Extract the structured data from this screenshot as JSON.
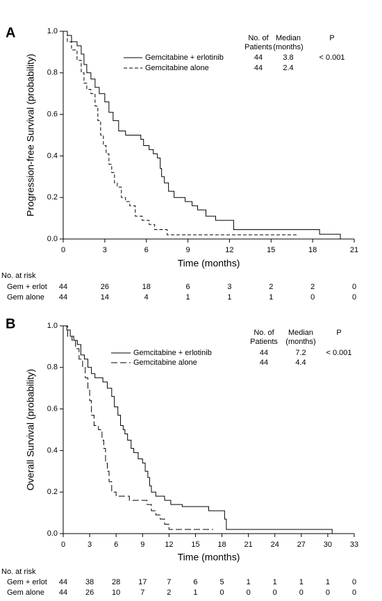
{
  "chart_data": [
    {
      "type": "step",
      "panel_label": "A",
      "x_label": "Time (months)",
      "y_label": "Progression-free Survival (probability)",
      "xlim": [
        0,
        21
      ],
      "xticks": [
        0,
        3,
        6,
        9,
        12,
        15,
        18,
        21
      ],
      "ylim": [
        0,
        1
      ],
      "yticks": [
        {
          "value": 0,
          "label": "0.0"
        },
        0.2,
        0.4,
        0.6,
        0.8,
        {
          "value": 1,
          "label": "1.0"
        }
      ],
      "legend_headers": [
        [
          "No. of",
          "Patients"
        ],
        [
          "Median",
          "(months)"
        ],
        [
          "P"
        ]
      ],
      "p_value": "< 0.001",
      "series": [
        {
          "name": "Gemcitabine + erlotinib",
          "color": "#000000",
          "line_style": "solid",
          "n": 44,
          "median": 3.8,
          "x": [
            0,
            0.3,
            0.6,
            1.0,
            1.3,
            1.5,
            1.7,
            2.0,
            2.3,
            2.6,
            3.0,
            3.3,
            3.6,
            4.0,
            4.5,
            5.6,
            5.8,
            6.2,
            6.5,
            6.8,
            7.0,
            7.1,
            7.3,
            7.6,
            8.0,
            8.8,
            9.3,
            9.7,
            10.3,
            11.0,
            12.3,
            18.5,
            20.0
          ],
          "values": [
            1.0,
            0.98,
            0.95,
            0.93,
            0.89,
            0.84,
            0.8,
            0.77,
            0.73,
            0.7,
            0.66,
            0.61,
            0.57,
            0.52,
            0.5,
            0.48,
            0.45,
            0.43,
            0.41,
            0.39,
            0.34,
            0.3,
            0.27,
            0.23,
            0.2,
            0.18,
            0.16,
            0.14,
            0.11,
            0.09,
            0.045,
            0.023,
            0.0
          ]
        },
        {
          "name": "Gemcitabine alone",
          "color": "#000000",
          "line_style": "dashed",
          "n": 44,
          "median": 2.4,
          "x": [
            0,
            0.3,
            0.6,
            1.0,
            1.3,
            1.5,
            1.7,
            2.0,
            2.3,
            2.5,
            2.7,
            2.9,
            3.1,
            3.3,
            3.5,
            3.7,
            3.9,
            4.2,
            4.5,
            4.8,
            5.2,
            5.7,
            6.2,
            6.6,
            7.5,
            17.0
          ],
          "values": [
            1.0,
            0.95,
            0.91,
            0.86,
            0.8,
            0.75,
            0.72,
            0.7,
            0.64,
            0.57,
            0.5,
            0.45,
            0.41,
            0.36,
            0.32,
            0.27,
            0.25,
            0.2,
            0.18,
            0.16,
            0.11,
            0.09,
            0.07,
            0.045,
            0.02,
            0.02
          ]
        }
      ],
      "risk_table": {
        "title": "No. at risk",
        "rows": [
          {
            "label": "Gem + erlot",
            "counts": [
              44,
              26,
              18,
              6,
              3,
              2,
              2,
              0
            ]
          },
          {
            "label": "Gem alone",
            "counts": [
              44,
              14,
              4,
              1,
              1,
              1,
              0,
              0
            ]
          }
        ]
      }
    },
    {
      "type": "step",
      "panel_label": "B",
      "x_label": "Time (months)",
      "y_label": "Overall Survival (probability)",
      "xlim": [
        0,
        33
      ],
      "xticks": [
        0,
        3,
        6,
        9,
        12,
        15,
        18,
        21,
        24,
        27,
        30,
        33
      ],
      "ylim": [
        0,
        1
      ],
      "yticks": [
        {
          "value": 0,
          "label": "0.0"
        },
        0.2,
        0.4,
        0.6,
        0.8,
        {
          "value": 1,
          "label": "1.0"
        }
      ],
      "legend_headers": [
        [
          "No. of",
          "Patients"
        ],
        [
          "Median",
          "(months)"
        ],
        [
          "P"
        ]
      ],
      "p_value": "< 0.001",
      "series": [
        {
          "name": "Gemcitabine + erlotinib",
          "color": "#000000",
          "line_style": "solid",
          "n": 44,
          "median": 7.2,
          "x": [
            0,
            0.4,
            0.8,
            1.2,
            1.6,
            2.0,
            2.4,
            2.8,
            3.2,
            3.6,
            4.5,
            5.0,
            5.5,
            5.8,
            6.2,
            6.5,
            6.8,
            7.0,
            7.3,
            7.7,
            8.0,
            8.5,
            9.0,
            9.3,
            9.6,
            9.8,
            10.0,
            10.5,
            11.5,
            12.2,
            13.5,
            16.5,
            18.3,
            18.5,
            30.5
          ],
          "values": [
            1.0,
            0.98,
            0.95,
            0.93,
            0.91,
            0.86,
            0.84,
            0.8,
            0.77,
            0.75,
            0.73,
            0.7,
            0.66,
            0.61,
            0.57,
            0.52,
            0.5,
            0.48,
            0.45,
            0.41,
            0.39,
            0.36,
            0.34,
            0.3,
            0.27,
            0.23,
            0.2,
            0.18,
            0.16,
            0.14,
            0.13,
            0.11,
            0.07,
            0.02,
            0.0
          ]
        },
        {
          "name": "Gemcitabine alone",
          "color": "#000000",
          "line_style": "long-dashed",
          "n": 44,
          "median": 4.4,
          "x": [
            0,
            0.5,
            1.0,
            1.4,
            1.8,
            2.2,
            2.5,
            2.8,
            3.0,
            3.2,
            3.5,
            4.0,
            4.4,
            4.6,
            4.8,
            5.0,
            5.2,
            5.5,
            6.0,
            7.5,
            9.5,
            10.0,
            10.5,
            11.0,
            11.5,
            12.0,
            17.0
          ],
          "values": [
            1.0,
            0.95,
            0.93,
            0.89,
            0.84,
            0.8,
            0.75,
            0.7,
            0.64,
            0.57,
            0.52,
            0.5,
            0.45,
            0.41,
            0.34,
            0.3,
            0.25,
            0.2,
            0.18,
            0.16,
            0.14,
            0.11,
            0.09,
            0.07,
            0.045,
            0.02,
            0.02
          ]
        }
      ],
      "risk_table": {
        "title": "No. at risk",
        "rows": [
          {
            "label": "Gem + erlot",
            "counts": [
              44,
              38,
              28,
              17,
              7,
              6,
              5,
              1,
              1,
              1,
              1,
              0
            ]
          },
          {
            "label": "Gem alone",
            "counts": [
              44,
              26,
              10,
              7,
              2,
              1,
              0,
              0,
              0,
              0,
              0,
              0
            ]
          }
        ]
      }
    }
  ]
}
